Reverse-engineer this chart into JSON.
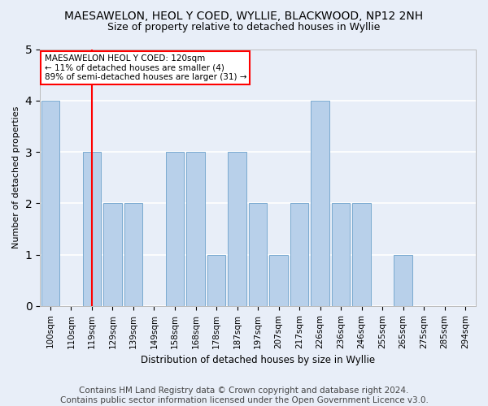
{
  "title": "MAESAWELON, HEOL Y COED, WYLLIE, BLACKWOOD, NP12 2NH",
  "subtitle": "Size of property relative to detached houses in Wyllie",
  "xlabel": "Distribution of detached houses by size in Wyllie",
  "ylabel": "Number of detached properties",
  "categories": [
    "100sqm",
    "110sqm",
    "119sqm",
    "129sqm",
    "139sqm",
    "149sqm",
    "158sqm",
    "168sqm",
    "178sqm",
    "187sqm",
    "197sqm",
    "207sqm",
    "217sqm",
    "226sqm",
    "236sqm",
    "246sqm",
    "255sqm",
    "265sqm",
    "275sqm",
    "285sqm",
    "294sqm"
  ],
  "values": [
    4,
    0,
    3,
    2,
    2,
    0,
    3,
    3,
    1,
    3,
    2,
    1,
    2,
    4,
    2,
    2,
    0,
    1,
    0,
    0,
    0
  ],
  "bar_color": "#b8d0ea",
  "bar_edge_color": "#7aaad0",
  "highlight_index": 2,
  "red_line_x": 2,
  "annotation_text": "MAESAWELON HEOL Y COED: 120sqm\n← 11% of detached houses are smaller (4)\n89% of semi-detached houses are larger (31) →",
  "ylim": [
    0,
    5
  ],
  "yticks": [
    0,
    1,
    2,
    3,
    4,
    5
  ],
  "footer": "Contains HM Land Registry data © Crown copyright and database right 2024.\nContains public sector information licensed under the Open Government Licence v3.0.",
  "bg_color": "#e8eef8",
  "grid_color": "#ffffff",
  "title_fontsize": 10,
  "subtitle_fontsize": 9,
  "footer_fontsize": 7.5
}
